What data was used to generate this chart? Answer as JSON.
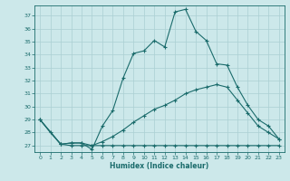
{
  "xlabel": "Humidex (Indice chaleur)",
  "bg_color": "#cce8ea",
  "grid_color": "#aacfd2",
  "line_color": "#1a6b6b",
  "xlim": [
    -0.5,
    23.5
  ],
  "ylim": [
    26.5,
    37.8
  ],
  "yticks": [
    27,
    28,
    29,
    30,
    31,
    32,
    33,
    34,
    35,
    36,
    37
  ],
  "xticks": [
    0,
    1,
    2,
    3,
    4,
    5,
    6,
    7,
    8,
    9,
    10,
    11,
    12,
    13,
    14,
    15,
    16,
    17,
    18,
    19,
    20,
    21,
    22,
    23
  ],
  "line1_x": [
    0,
    1,
    2,
    3,
    4,
    5,
    6,
    7,
    8,
    9,
    10,
    11,
    12,
    13,
    14,
    15,
    16,
    17,
    18,
    19,
    20,
    21,
    22,
    23
  ],
  "line1_y": [
    29,
    28,
    27.1,
    27.2,
    27.2,
    26.7,
    28.5,
    29.7,
    32.2,
    34.1,
    34.3,
    35.1,
    34.6,
    37.3,
    37.5,
    35.8,
    35.1,
    33.3,
    33.2,
    31.5,
    30.1,
    29.0,
    28.5,
    27.5
  ],
  "line2_x": [
    0,
    2,
    3,
    4,
    5,
    6,
    7,
    8,
    9,
    10,
    11,
    12,
    13,
    14,
    15,
    16,
    17,
    18,
    19,
    20,
    21,
    22,
    23
  ],
  "line2_y": [
    29,
    27.1,
    27.2,
    27.2,
    27.0,
    27.3,
    27.7,
    28.2,
    28.8,
    29.3,
    29.8,
    30.1,
    30.5,
    31.0,
    31.3,
    31.5,
    31.7,
    31.5,
    30.5,
    29.5,
    28.5,
    28.0,
    27.5
  ],
  "line3_x": [
    0,
    2,
    3,
    4,
    5,
    6,
    7,
    8,
    9,
    10,
    11,
    12,
    13,
    14,
    15,
    16,
    17,
    18,
    19,
    20,
    21,
    22,
    23
  ],
  "line3_y": [
    29,
    27.1,
    27.0,
    27.0,
    27.0,
    27.0,
    27.0,
    27.0,
    27.0,
    27.0,
    27.0,
    27.0,
    27.0,
    27.0,
    27.0,
    27.0,
    27.0,
    27.0,
    27.0,
    27.0,
    27.0,
    27.0,
    27.0
  ]
}
